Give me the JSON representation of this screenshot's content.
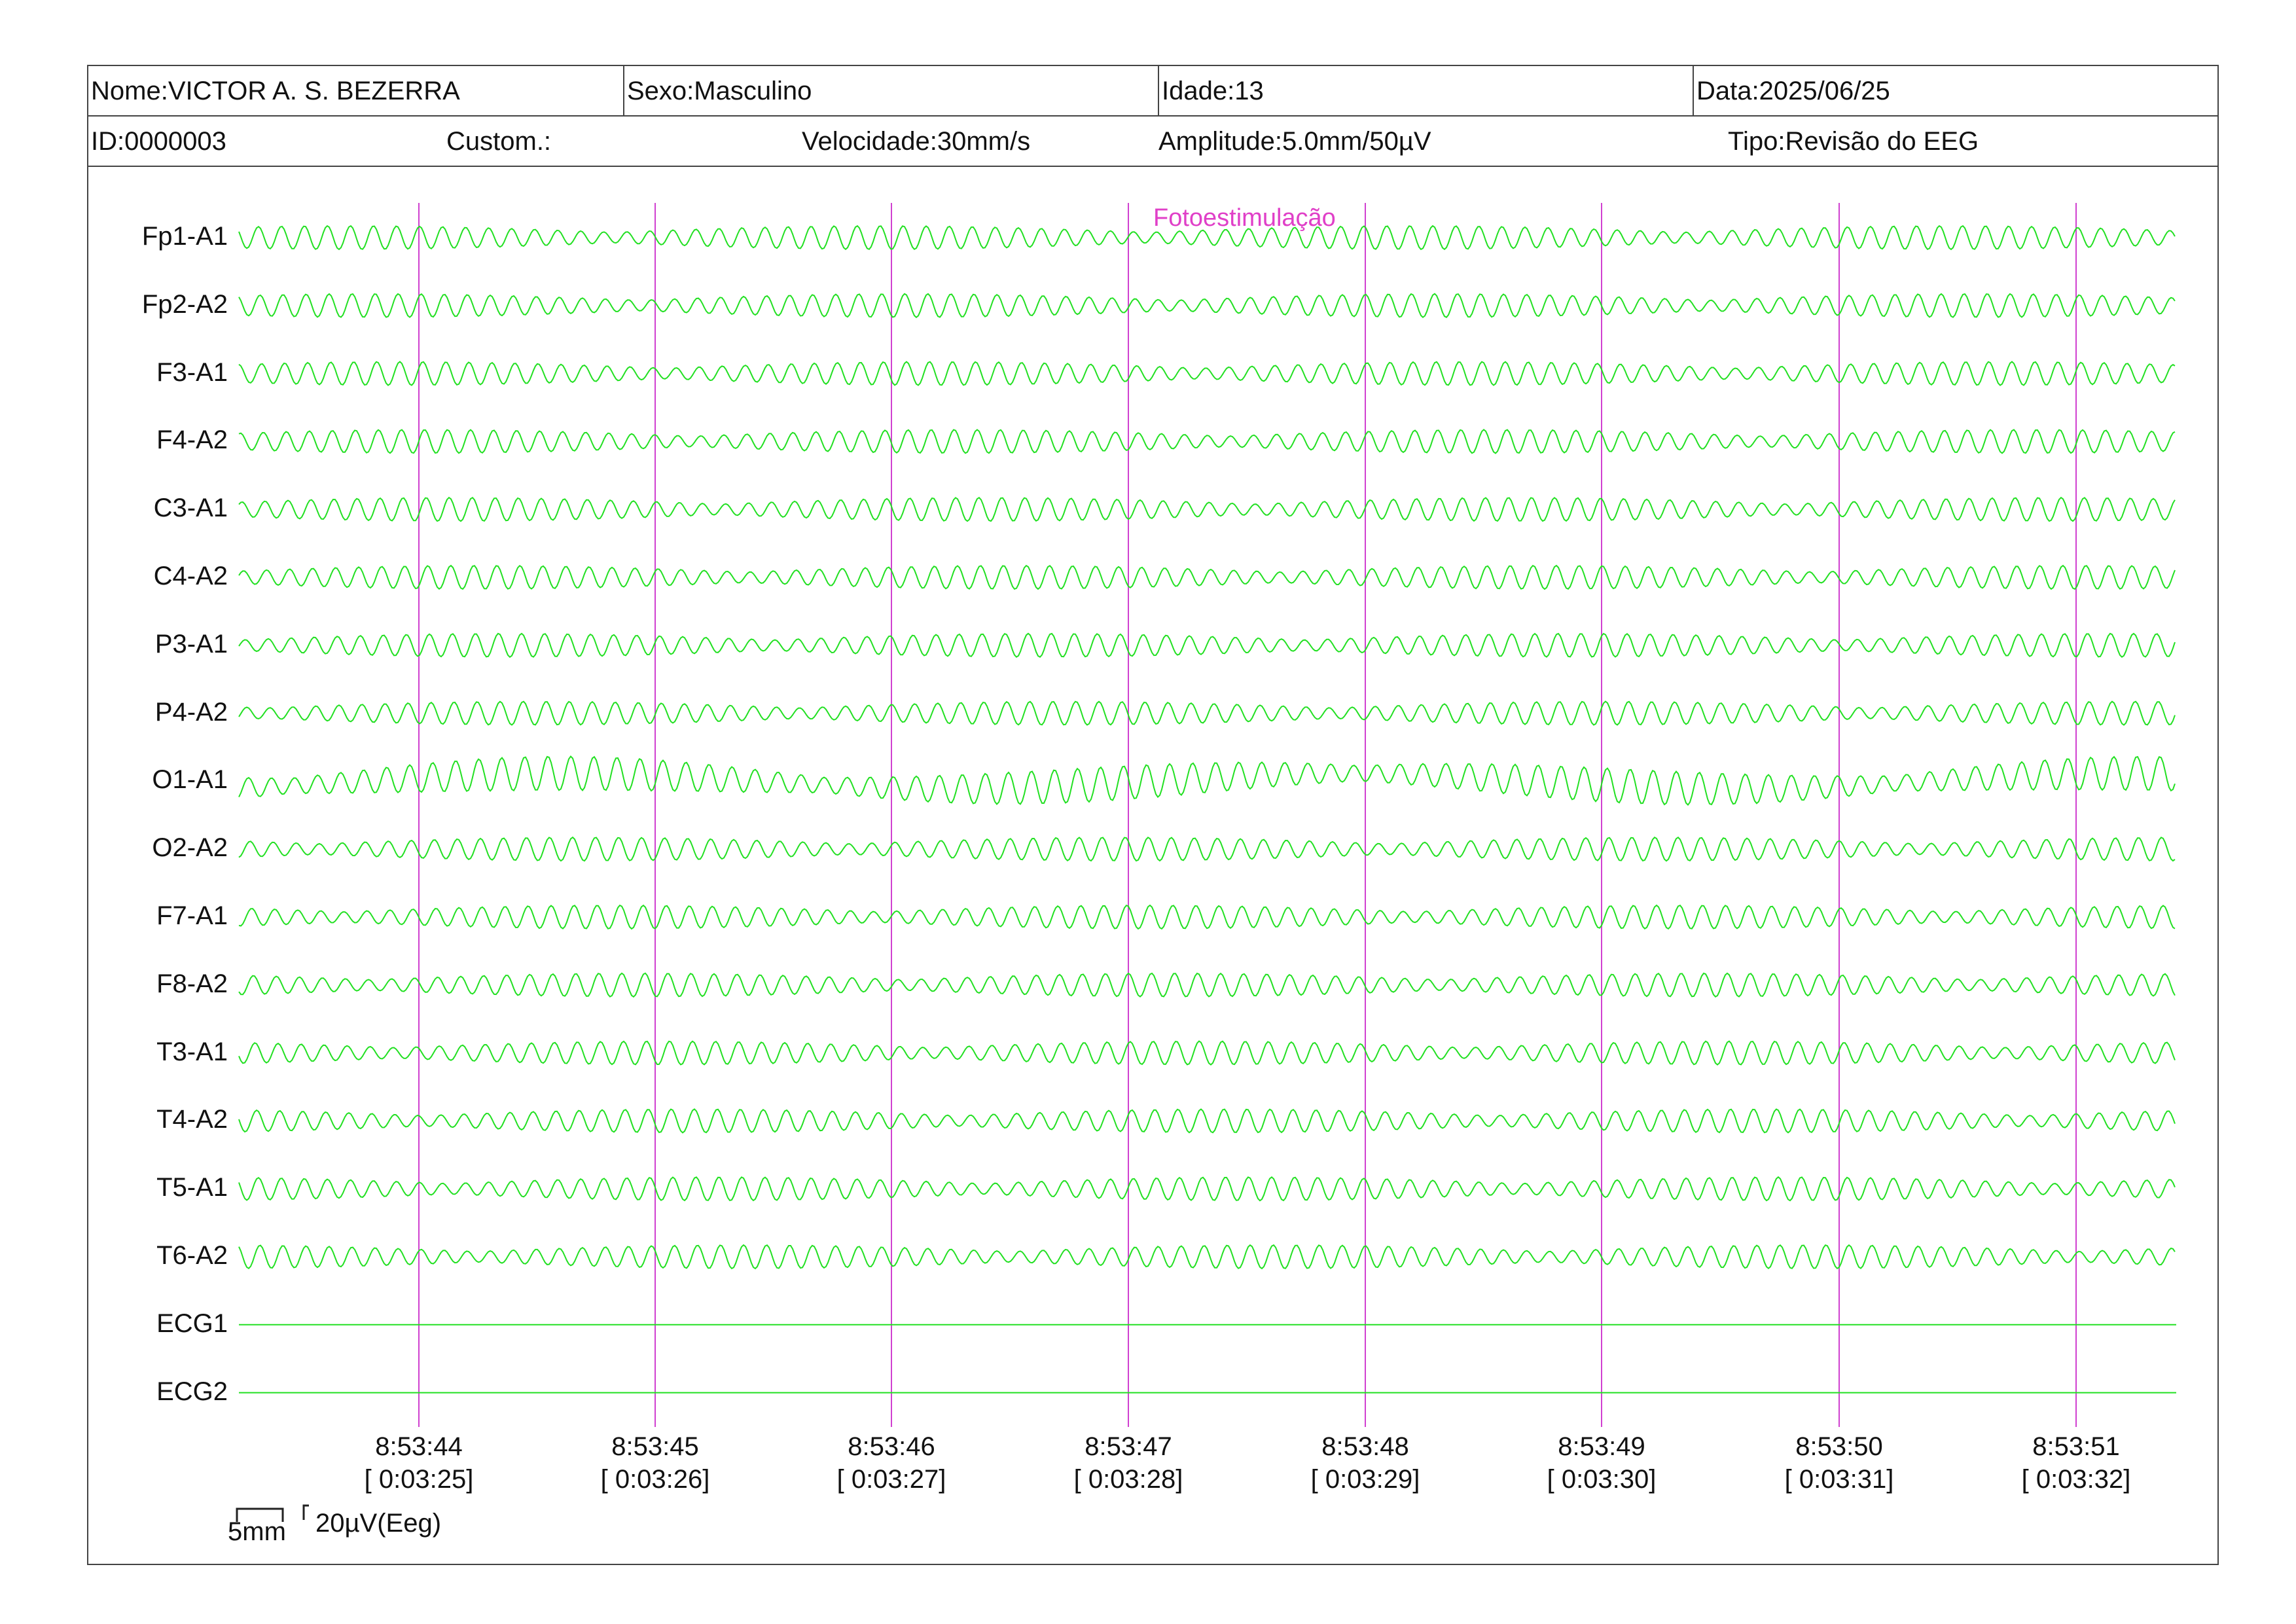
{
  "header": {
    "nome": "Nome:VICTOR A. S. BEZERRA",
    "sexo": "Sexo:Masculino",
    "idade": "Idade:13",
    "data": "Data:2025/06/25",
    "id": "ID:0000003",
    "custom": "Custom.:",
    "velocidade": "Velocidade:30mm/s",
    "amplitude": "Amplitude:5.0mm/50µV",
    "tipo": "Tipo:Revisão do EEG"
  },
  "event_marker": "Fotoestimulação",
  "channels": [
    {
      "label": "Fp1-A1",
      "type": "eeg"
    },
    {
      "label": "Fp2-A2",
      "type": "eeg"
    },
    {
      "label": "F3-A1",
      "type": "eeg"
    },
    {
      "label": "F4-A2",
      "type": "eeg"
    },
    {
      "label": "C3-A1",
      "type": "eeg"
    },
    {
      "label": "C4-A2",
      "type": "eeg"
    },
    {
      "label": "P3-A1",
      "type": "eeg"
    },
    {
      "label": "P4-A2",
      "type": "eeg"
    },
    {
      "label": "O1-A1",
      "type": "eeg"
    },
    {
      "label": "O2-A2",
      "type": "eeg"
    },
    {
      "label": "F7-A1",
      "type": "eeg"
    },
    {
      "label": "F8-A2",
      "type": "eeg"
    },
    {
      "label": "T3-A1",
      "type": "eeg"
    },
    {
      "label": "T4-A2",
      "type": "eeg"
    },
    {
      "label": "T5-A1",
      "type": "eeg"
    },
    {
      "label": "T6-A2",
      "type": "eeg"
    },
    {
      "label": "ECG1",
      "type": "flat"
    },
    {
      "label": "ECG2",
      "type": "flat"
    }
  ],
  "time_markers": [
    {
      "clock": "8:53:44",
      "elapsed": "[ 0:03:25]"
    },
    {
      "clock": "8:53:45",
      "elapsed": "[ 0:03:26]"
    },
    {
      "clock": "8:53:46",
      "elapsed": "[ 0:03:27]"
    },
    {
      "clock": "8:53:47",
      "elapsed": "[ 0:03:28]"
    },
    {
      "clock": "8:53:48",
      "elapsed": "[ 0:03:29]"
    },
    {
      "clock": "8:53:49",
      "elapsed": "[ 0:03:30]"
    },
    {
      "clock": "8:53:50",
      "elapsed": "[ 0:03:31]"
    },
    {
      "clock": "8:53:51",
      "elapsed": "[ 0:03:32]"
    }
  ],
  "scale": {
    "time_label": "5mm",
    "amp_label": "20µV(Eeg)"
  },
  "colors": {
    "trace": "#22e022",
    "marker": "#d040d0",
    "event_text": "#e040c8",
    "border": "#444444"
  }
}
